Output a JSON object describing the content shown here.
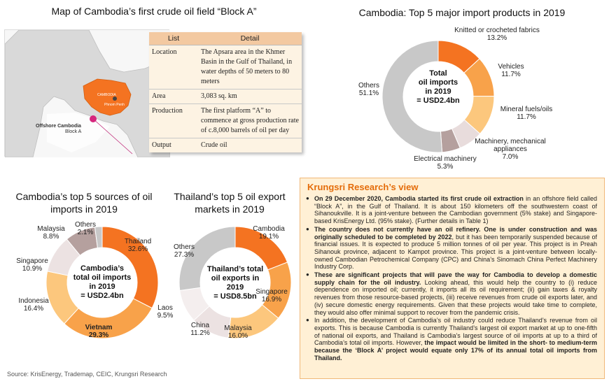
{
  "map_section": {
    "title": "Map of Cambodia’s first crude oil field “Block A”",
    "map_labels": {
      "country": "CAMBODIA",
      "capital": "Phnom Penh",
      "offshore": "Offshore Cambodia",
      "block": "Block A"
    },
    "table": {
      "headers": [
        "List",
        "Detail"
      ],
      "rows": [
        {
          "key": "Location",
          "value": "The Apsara area in the Khmer Basin in the Gulf of Thailand, in water depths of 50 meters to 80 meters"
        },
        {
          "key": "Area",
          "value": "3,083 sq. km"
        },
        {
          "key": "Production",
          "value": "The first platform “A” to commence at gross production rate of c.8,000 barrels of oil per day"
        },
        {
          "key": "Output",
          "value": "Crude oil"
        }
      ]
    }
  },
  "chart_data": [
    {
      "type": "pie",
      "title": "Cambodia:  Top 5 major import products in 2019",
      "center_label": [
        "Total",
        "oil imports",
        "in 2019",
        "= USD2.4bn"
      ],
      "categories": [
        "Knitted or crocheted fabrics",
        "Vehicles",
        "Mineral fuels/oils",
        "Machinery, mechanical appliances",
        "Electrical machinery",
        "Others"
      ],
      "values": [
        13.2,
        11.7,
        11.7,
        7.0,
        5.3,
        51.1
      ],
      "labels": [
        "13.2%",
        "11.7%",
        "11.7%",
        "7.0%",
        "5.3%",
        "51.1%"
      ],
      "colors": [
        "#f47321",
        "#f8a24a",
        "#fcc77d",
        "#e8dcdc",
        "#b5a09e",
        "#c8c8c8"
      ]
    },
    {
      "type": "pie",
      "title": "Cambodia’s top 5 sources of oil imports in 2019",
      "center_label": [
        "Cambodia’s",
        "total oil imports",
        "in 2019",
        "= USD2.4bn"
      ],
      "categories": [
        "Thailand",
        "Vietnam",
        "Indonesia",
        "Singapore",
        "Malaysia",
        "Others"
      ],
      "values": [
        32.6,
        29.3,
        16.4,
        10.9,
        8.8,
        2.1
      ],
      "labels": [
        "32.6%",
        "29.3%",
        "16.4%",
        "10.9%",
        "8.8%",
        "2.1%"
      ],
      "colors": [
        "#f47321",
        "#f8a24a",
        "#fcc77d",
        "#ece2e2",
        "#b5a09e",
        "#c8c8c8"
      ]
    },
    {
      "type": "pie",
      "title": "Thailand’s top 5 oil export markets in 2019",
      "center_label": [
        "Thailand’s total",
        "oil exports in",
        "2019",
        "= USD8.5bn"
      ],
      "categories": [
        "Cambodia",
        "Singapore",
        "Malaysia",
        "China",
        "Laos",
        "Others"
      ],
      "values": [
        19.1,
        16.9,
        16.0,
        11.2,
        9.5,
        27.3
      ],
      "labels": [
        "19.1%",
        "16.9%",
        "16.0%",
        "11.2%",
        "9.5%",
        "27.3%"
      ],
      "colors": [
        "#f47321",
        "#f8a24a",
        "#fcc77d",
        "#ece2e2",
        "#f4eeee",
        "#c8c8c8"
      ]
    }
  ],
  "view": {
    "title": "Krungsri Research’s view",
    "bullets": [
      {
        "bold": "On 29 December 2020, Cambodia started its first crude oil extraction",
        "text": " in an offshore field called “Block A”, in the Gulf of Thailand. It is about 150 kilometers off the southwestern coast of Sihanoukville. It is a joint-venture between the Cambodian government (5% stake) and Singapore-based KrisEnergy Ltd. (95% stake). (Further details in Table 1)"
      },
      {
        "bold": "The country does not currently have an oil refinery. One is under construction and was originally scheduled to be completed by 2022",
        "text": ", but it has been temporarily suspended because of financial issues. It is expected to produce 5 million tonnes of oil per year. This project is in Preah Sihanouk province, adjacent to Kampot province. This project is a joint-venture between locally-owned Cambodian Petrochemical Company (CPC) and China’s Sinomach China Perfect Machinery Industry Corp."
      },
      {
        "bold": "These are significant projects that will pave the way for Cambodia to develop a domestic supply chain for the oil industry.",
        "text": " Looking ahead, this would help the country to (i) reduce dependence on imported oil; currently, it imports all its oil requirement; (ii) gain taxes & royalty revenues from those resource-based projects, (iii) receive revenues from crude oil exports later, and (iv) secure domestic energy requirements. Given that these projects would take time to complete, they would also offer minimal support to recover from the pandemic crisis."
      },
      {
        "bold": "",
        "text": "In addition, the development of Cambodia’s oil industry could reduce Thailand’s revenue from oil exports. This is because Cambodia is currently Thailand’s largest oil export market at up to one-fifth of national oil exports, and Thailand is Cambodia’s largest source of oil imports at up to a third of Cambodia’s total oil imports. However, ",
        "bold_end": "the impact would be limited in the short- to medium-term because the ‘Block A’ project would equate only 17% of its annual total oil imports from Thailand."
      }
    ]
  },
  "source": "Source: KrisEnergy, Trademap, CEIC, Krungsri Research"
}
